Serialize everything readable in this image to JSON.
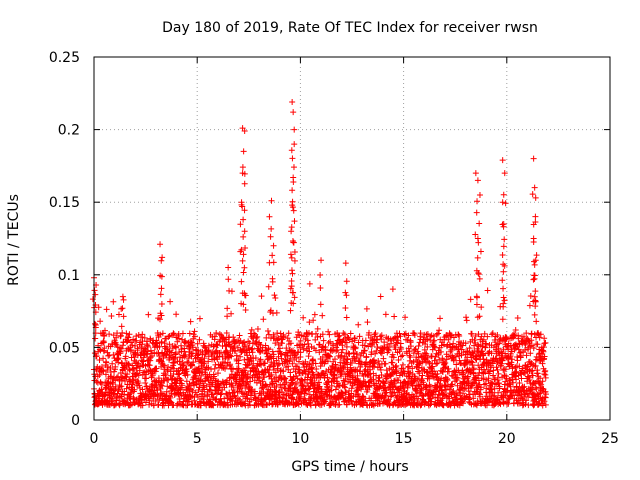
{
  "chart_data": {
    "type": "scatter",
    "title": "Day 180 of 2019, Rate Of TEC Index for receiver rwsn",
    "xlabel": "GPS time / hours",
    "ylabel": "ROTI / TECUs",
    "xlim": [
      0,
      25
    ],
    "ylim": [
      0,
      0.25
    ],
    "x_ticks": [
      0,
      5,
      10,
      15,
      20,
      25
    ],
    "x_tick_labels": [
      "0",
      "5",
      "10",
      "15",
      "20",
      "25"
    ],
    "y_ticks": [
      0,
      0.05,
      0.1,
      0.15,
      0.2,
      0.25
    ],
    "y_tick_labels": [
      "0",
      "0.05",
      "0.1",
      "0.15",
      "0.2",
      "0.25"
    ],
    "grid": true,
    "marker": "+",
    "color": "#ff0000",
    "series": [
      {
        "name": "ROTI",
        "x_range": [
          0,
          21.9
        ],
        "baseline_range": [
          0.01,
          0.06
        ],
        "note": "dense cloud of points, sampled every ~30 s; values below are representative peaks",
        "peaks": [
          {
            "x": 0.0,
            "y": 0.098
          },
          {
            "x": 0.1,
            "y": 0.093
          },
          {
            "x": 1.4,
            "y": 0.085
          },
          {
            "x": 3.2,
            "y": 0.121
          },
          {
            "x": 3.3,
            "y": 0.112
          },
          {
            "x": 6.5,
            "y": 0.105
          },
          {
            "x": 7.2,
            "y": 0.201
          },
          {
            "x": 7.3,
            "y": 0.199
          },
          {
            "x": 7.25,
            "y": 0.185
          },
          {
            "x": 7.2,
            "y": 0.17
          },
          {
            "x": 7.15,
            "y": 0.15
          },
          {
            "x": 7.3,
            "y": 0.13
          },
          {
            "x": 8.6,
            "y": 0.151
          },
          {
            "x": 8.5,
            "y": 0.14
          },
          {
            "x": 8.7,
            "y": 0.12
          },
          {
            "x": 9.6,
            "y": 0.219
          },
          {
            "x": 9.65,
            "y": 0.212
          },
          {
            "x": 9.7,
            "y": 0.2
          },
          {
            "x": 9.7,
            "y": 0.19
          },
          {
            "x": 9.65,
            "y": 0.167
          },
          {
            "x": 9.6,
            "y": 0.148
          },
          {
            "x": 9.55,
            "y": 0.13
          },
          {
            "x": 11.0,
            "y": 0.11
          },
          {
            "x": 12.2,
            "y": 0.108
          },
          {
            "x": 18.6,
            "y": 0.165
          },
          {
            "x": 18.5,
            "y": 0.17
          },
          {
            "x": 18.7,
            "y": 0.155
          },
          {
            "x": 18.6,
            "y": 0.125
          },
          {
            "x": 19.8,
            "y": 0.179
          },
          {
            "x": 19.9,
            "y": 0.17
          },
          {
            "x": 19.8,
            "y": 0.15
          },
          {
            "x": 19.85,
            "y": 0.135
          },
          {
            "x": 21.3,
            "y": 0.18
          },
          {
            "x": 21.35,
            "y": 0.16
          },
          {
            "x": 21.4,
            "y": 0.153
          },
          {
            "x": 21.3,
            "y": 0.125
          },
          {
            "x": 21.4,
            "y": 0.11
          }
        ]
      }
    ]
  }
}
